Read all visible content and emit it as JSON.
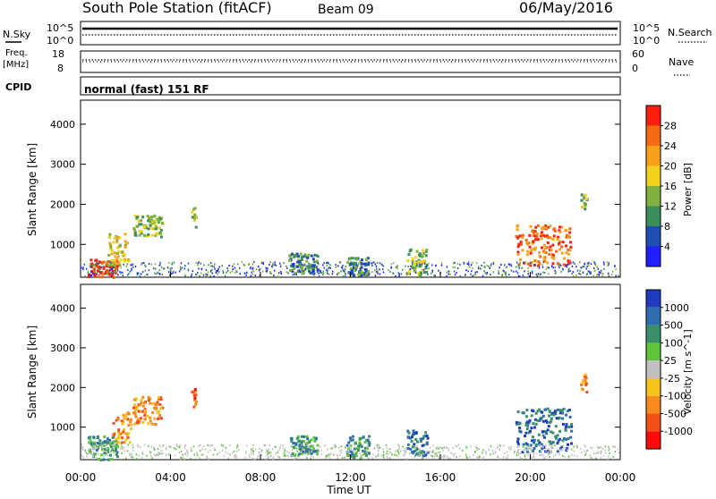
{
  "header": {
    "title": "South Pole Station (fitACF)",
    "beam": "Beam 09",
    "date": "06/May/2016"
  },
  "strip_sky": {
    "left_label": "N.Sky",
    "right_label": "N.Search",
    "tick_top": "10^5",
    "tick_bottom": "10^0",
    "tick_top_right": "10^5",
    "tick_bottom_right": "10^0"
  },
  "strip_freq": {
    "left_label_top": "Freq.",
    "left_label_unit": "[MHz]",
    "right_label": "Nave",
    "tick_top": "18",
    "tick_bottom": "8",
    "tick_top_right": "60",
    "tick_bottom_right": "0"
  },
  "cpid": {
    "label": "CPID",
    "text": "normal (fast) 151 RF"
  },
  "time_axis": {
    "label": "Time UT",
    "ticks": [
      "00:00",
      "04:00",
      "08:00",
      "12:00",
      "16:00",
      "20:00",
      "00:00"
    ]
  },
  "chart_data": [
    {
      "type": "heatmap",
      "name": "power",
      "ylabel": "Slant Range [km]",
      "yticks": [
        "1000",
        "2000",
        "3000",
        "4000"
      ],
      "ylim": [
        180,
        4600
      ],
      "xlim": [
        0,
        24
      ],
      "colorbar_label": "Power [dB]",
      "colorbar_ticks": [
        "28",
        "24",
        "20",
        "16",
        "12",
        "8",
        "4"
      ],
      "colorbar_colors": [
        "#2020ff",
        "#1f4fb0",
        "#3c8f5a",
        "#7fb040",
        "#f2d21a",
        "#f8a11c",
        "#f46b12",
        "#ff1f0f"
      ],
      "patches": [
        {
          "t0": 0.3,
          "t1": 1.6,
          "r0": 200,
          "r1": 650,
          "level": 7
        },
        {
          "t0": 1.2,
          "t1": 2.1,
          "r0": 500,
          "r1": 1300,
          "level": 4
        },
        {
          "t0": 2.3,
          "t1": 3.6,
          "r0": 1200,
          "r1": 1750,
          "level": 3
        },
        {
          "t0": 4.9,
          "t1": 5.1,
          "r0": 1450,
          "r1": 1950,
          "level": 3
        },
        {
          "t0": 9.2,
          "t1": 10.5,
          "r0": 300,
          "r1": 800,
          "level": 2
        },
        {
          "t0": 11.8,
          "t1": 12.8,
          "r0": 250,
          "r1": 700,
          "level": 2
        },
        {
          "t0": 14.5,
          "t1": 15.4,
          "r0": 300,
          "r1": 900,
          "level": 3
        },
        {
          "t0": 19.3,
          "t1": 21.8,
          "r0": 500,
          "r1": 1500,
          "level": 6
        },
        {
          "t0": 22.2,
          "t1": 22.5,
          "r0": 1900,
          "r1": 2300,
          "level": 3
        }
      ]
    },
    {
      "type": "heatmap",
      "name": "velocity",
      "ylabel": "Slant Range [km]",
      "yticks": [
        "1000",
        "2000",
        "3000",
        "4000"
      ],
      "ylim": [
        180,
        4600
      ],
      "xlim": [
        0,
        24
      ],
      "colorbar_label": "Velocity [m s^-1]",
      "colorbar_ticks": [
        "1000",
        "500",
        "100",
        "25",
        "-25",
        "-100",
        "-500",
        "-1000"
      ],
      "colorbar_colors": [
        "#ff0a0a",
        "#f4511a",
        "#f78b1c",
        "#f5c31a",
        "#c0c0c0",
        "#5fc43c",
        "#3a8f6a",
        "#2f6db0",
        "#1f3bbf"
      ],
      "patches": [
        {
          "t0": 0.3,
          "t1": 1.6,
          "r0": 200,
          "r1": 800,
          "level": 6
        },
        {
          "t0": 1.4,
          "t1": 2.2,
          "r0": 600,
          "r1": 1400,
          "level": 2
        },
        {
          "t0": 2.3,
          "t1": 3.6,
          "r0": 1100,
          "r1": 1800,
          "level": 2
        },
        {
          "t0": 4.9,
          "t1": 5.1,
          "r0": 1500,
          "r1": 2000,
          "level": 1
        },
        {
          "t0": 9.3,
          "t1": 10.5,
          "r0": 300,
          "r1": 800,
          "level": 6
        },
        {
          "t0": 11.8,
          "t1": 12.8,
          "r0": 250,
          "r1": 800,
          "level": 6
        },
        {
          "t0": 14.5,
          "t1": 15.4,
          "r0": 300,
          "r1": 950,
          "level": 7
        },
        {
          "t0": 19.3,
          "t1": 21.8,
          "r0": 400,
          "r1": 1500,
          "level": 7
        },
        {
          "t0": 22.2,
          "t1": 22.5,
          "r0": 1900,
          "r1": 2400,
          "level": 2
        }
      ]
    }
  ]
}
